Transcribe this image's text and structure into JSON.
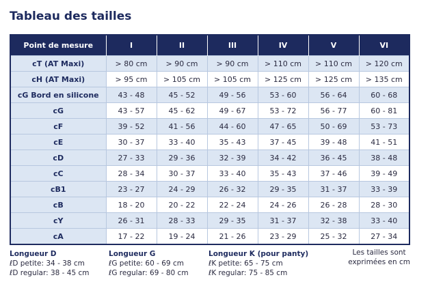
{
  "header": {
    "title": "Tableau des tailles"
  },
  "table": {
    "columns": [
      "Point de mesure",
      "I",
      "II",
      "III",
      "IV",
      "V",
      "VI"
    ],
    "rows": [
      [
        "cT (AT Maxi)",
        "> 80 cm",
        "> 90 cm",
        "> 90 cm",
        "> 110 cm",
        "> 110 cm",
        "> 120 cm"
      ],
      [
        "cH (AT Maxi)",
        "> 95 cm",
        "> 105 cm",
        "> 105 cm",
        "> 125 cm",
        "> 125 cm",
        "> 135 cm"
      ],
      [
        "cG  Bord en silicone",
        "43 - 48",
        "45 - 52",
        "49 - 56",
        "53 - 60",
        "56 - 64",
        "60 - 68"
      ],
      [
        "cG",
        "43 - 57",
        "45 - 62",
        "49 - 67",
        "53 - 72",
        "56 - 77",
        "60 - 81"
      ],
      [
        "cF",
        "39 - 52",
        "41 - 56",
        "44 - 60",
        "47 - 65",
        "50 - 69",
        "53 - 73"
      ],
      [
        "cE",
        "30 - 37",
        "33 - 40",
        "35 - 43",
        "37 - 45",
        "39 - 48",
        "41 - 51"
      ],
      [
        "cD",
        "27 - 33",
        "29 - 36",
        "32 - 39",
        "34 - 42",
        "36 - 45",
        "38 - 48"
      ],
      [
        "cC",
        "28 - 34",
        "30 - 37",
        "33 - 40",
        "35 - 43",
        "37 - 46",
        "39 - 49"
      ],
      [
        "cB1",
        "23 - 27",
        "24 - 29",
        "26 - 32",
        "29 - 35",
        "31 - 37",
        "33 - 39"
      ],
      [
        "cB",
        "18 - 20",
        "20 - 22",
        "22 - 24",
        "24 - 26",
        "26 - 28",
        "28 - 30"
      ],
      [
        "cY",
        "26 - 31",
        "28 - 33",
        "29 - 35",
        "31 - 37",
        "32 - 38",
        "33 - 40"
      ],
      [
        "cA",
        "17 - 22",
        "19 - 24",
        "21 - 26",
        "23 - 29",
        "25 - 32",
        "27 - 34"
      ]
    ]
  },
  "notes": [
    {
      "title": "Longueur D",
      "lines": [
        "ℓD petite: 34 - 38 cm",
        "ℓD regular: 38 - 45 cm"
      ]
    },
    {
      "title": "Longueur G",
      "lines": [
        "ℓG petite: 60 - 69 cm",
        "ℓG regular: 69 - 80 cm"
      ]
    },
    {
      "title": "Longueur K (pour panty)",
      "lines": [
        "ℓK petite: 65 - 75 cm",
        "ℓK regular: 75 - 85 cm"
      ]
    }
  ],
  "footnote": [
    "Les tailles sont",
    "exprimées en cm"
  ]
}
